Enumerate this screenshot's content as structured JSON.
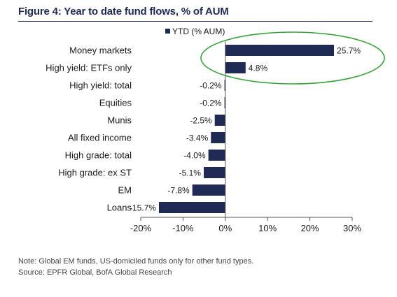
{
  "figure": {
    "title": "Figure 4: Year to date fund flows, % of AUM",
    "note": "Note: Global EM funds, US-domiciled funds only for other fund types.",
    "source": "Source: EPFR Global, BofA Global Research"
  },
  "chart_data": {
    "type": "bar",
    "orientation": "horizontal",
    "title": "Figure 4: Year to date fund flows, % of AUM",
    "xlabel": "",
    "ylabel": "",
    "xlim": [
      -20,
      30
    ],
    "x_ticks": [
      "-20%",
      "-10%",
      "0%",
      "10%",
      "20%",
      "30%"
    ],
    "categories": [
      "Money markets",
      "High yield: ETFs only",
      "High yield: total",
      "Equities",
      "Munis",
      "All fixed income",
      "High grade: total",
      "High grade: ex ST",
      "EM",
      "Loans"
    ],
    "series": [
      {
        "name": "YTD (% AUM)",
        "values": [
          25.7,
          4.8,
          -0.2,
          -0.2,
          -2.5,
          -3.4,
          -4.0,
          -5.1,
          -7.8,
          -15.7
        ],
        "labels": [
          "25.7%",
          "4.8%",
          "-0.2%",
          "-0.2%",
          "-2.5%",
          "-3.4%",
          "-4.0%",
          "-5.1%",
          "-7.8%",
          "-15.7%"
        ]
      }
    ],
    "legend_position": "top",
    "grid": false,
    "colors": {
      "bar": "#1f2a55",
      "annotation_ellipse": "#3aa23a",
      "axis": "#555555"
    },
    "annotation": {
      "shape": "ellipse",
      "highlights": [
        "Money markets",
        "High yield: ETFs only"
      ]
    }
  }
}
